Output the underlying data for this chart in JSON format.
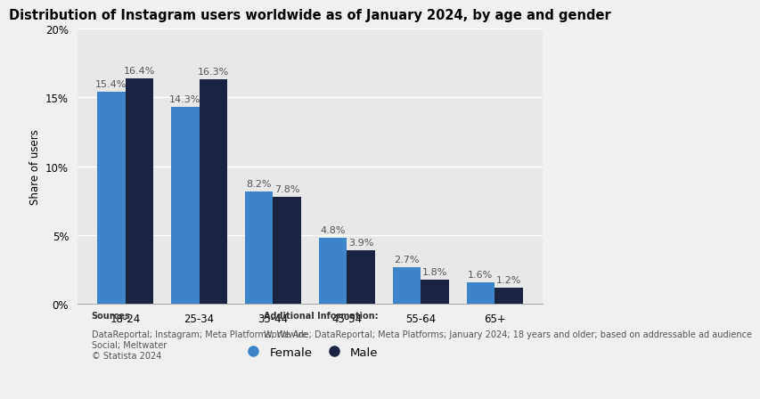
{
  "title": "Distribution of Instagram users worldwide as of January 2024, by age and gender",
  "categories": [
    "18-24",
    "25-34",
    "35-44",
    "45-54",
    "55-64",
    "65+"
  ],
  "female_values": [
    15.4,
    14.3,
    8.2,
    4.8,
    2.7,
    1.6
  ],
  "male_values": [
    16.4,
    16.3,
    7.8,
    3.9,
    1.8,
    1.2
  ],
  "female_color": "#3d85c8",
  "male_color": "#1a2340",
  "ylabel": "Share of users",
  "ylim": [
    0,
    20
  ],
  "yticks": [
    0,
    5,
    10,
    15,
    20
  ],
  "ytick_labels": [
    "0%",
    "5%",
    "10%",
    "15%",
    "20%"
  ],
  "bar_width": 0.38,
  "sources_label": "Sources",
  "sources_body": "DataReportal; Instagram; Meta Platforms; We Are\nSocial; Meltwater\n© Statista 2024",
  "additional_label": "Additional Information:",
  "additional_body": "Worldwide; DataReportal; Meta Platforms; January 2024; 18 years and older; based on addressable ad audience",
  "bg_color": "#f0f0f0",
  "plot_bg_color": "#e8e8e8",
  "footer_bg_color": "#ffffff",
  "title_fontsize": 10.5,
  "label_fontsize": 8,
  "axis_fontsize": 8.5,
  "footer_fontsize": 7
}
